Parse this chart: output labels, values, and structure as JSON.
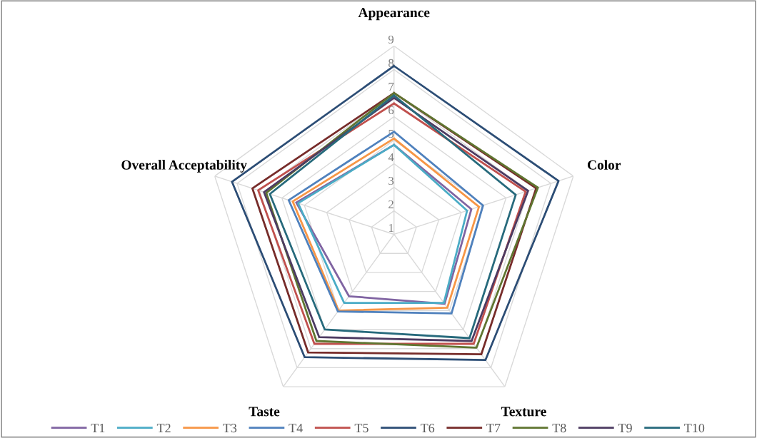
{
  "chart_data": {
    "type": "radar",
    "categories": [
      "Appearance",
      "Color",
      "Texture",
      "Taste",
      "Overall Acceptability"
    ],
    "ylim": [
      1,
      9
    ],
    "yticks": [
      1,
      2,
      3,
      4,
      5,
      6,
      7,
      8,
      9
    ],
    "grid": true,
    "legend": "bottom",
    "marker": "none",
    "line_style": "solid",
    "series": [
      {
        "name": "T1",
        "color": "#8064a2",
        "values": [
          4.8,
          4.45,
          4.65,
          4.25,
          5.36
        ]
      },
      {
        "name": "T2",
        "color": "#4bacc6",
        "values": [
          4.8,
          4.26,
          4.6,
          4.6,
          5.28
        ]
      },
      {
        "name": "T3",
        "color": "#f79646",
        "values": [
          5.07,
          4.79,
          4.85,
          5.0,
          5.52
        ]
      },
      {
        "name": "T4",
        "color": "#4f81bd",
        "values": [
          5.36,
          4.97,
          5.15,
          5.05,
          5.7
        ]
      },
      {
        "name": "T5",
        "color": "#c0504d",
        "values": [
          6.56,
          6.87,
          6.75,
          6.75,
          7.06
        ]
      },
      {
        "name": "T6",
        "color": "#2c4d75",
        "values": [
          8.15,
          8.34,
          7.6,
          7.45,
          8.23
        ]
      },
      {
        "name": "T7",
        "color": "#772c2a",
        "values": [
          7.0,
          7.34,
          7.3,
          7.2,
          7.32
        ]
      },
      {
        "name": "T8",
        "color": "#5f7530",
        "values": [
          7.0,
          7.42,
          6.95,
          6.6,
          6.7
        ]
      },
      {
        "name": "T9",
        "color": "#4d3b62",
        "values": [
          6.8,
          6.98,
          6.6,
          6.4,
          6.8
        ]
      },
      {
        "name": "T10",
        "color": "#276a7c",
        "values": [
          6.9,
          6.43,
          6.45,
          6.0,
          6.54
        ]
      }
    ]
  }
}
